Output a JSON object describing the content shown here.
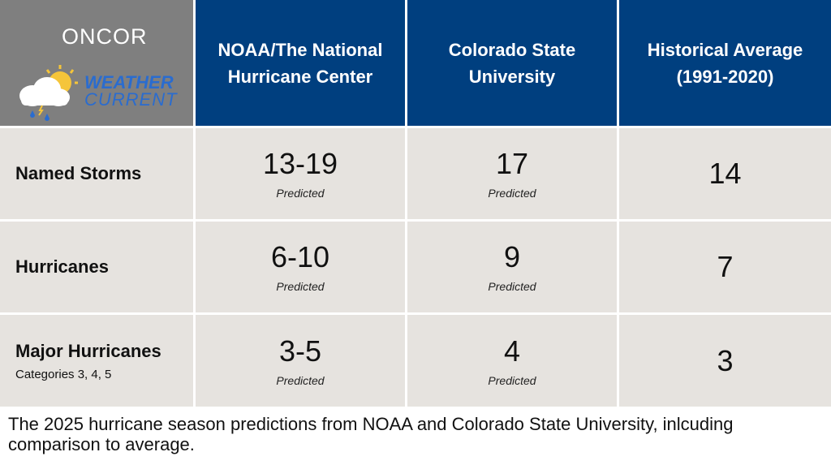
{
  "logo": {
    "brand": "ONCOR",
    "line1": "WEATHER",
    "line2": "CURRENT"
  },
  "chart_data": {
    "type": "table",
    "columns": [
      "NOAA/The National Hurricane Center",
      "Colorado State University",
      "Historical Average (1991-2020)"
    ],
    "rows": [
      {
        "label": "Named Storms",
        "sublabel": "",
        "noaa": "13-19",
        "noaa_note": "Predicted",
        "csu": "17",
        "csu_note": "Predicted",
        "avg": "14"
      },
      {
        "label": "Hurricanes",
        "sublabel": "",
        "noaa": "6-10",
        "noaa_note": "Predicted",
        "csu": "9",
        "csu_note": "Predicted",
        "avg": "7"
      },
      {
        "label": "Major Hurricanes",
        "sublabel": "Categories 3, 4, 5",
        "noaa": "3-5",
        "noaa_note": "Predicted",
        "csu": "4",
        "csu_note": "Predicted",
        "avg": "3"
      }
    ]
  },
  "caption": "The 2025 hurricane season predictions from NOAA and Colorado State University, inlcuding comparison to average.",
  "colors": {
    "header_bg": "#003f7f",
    "logo_bg": "#7f7f7f",
    "body_bg": "#e6e3df"
  }
}
